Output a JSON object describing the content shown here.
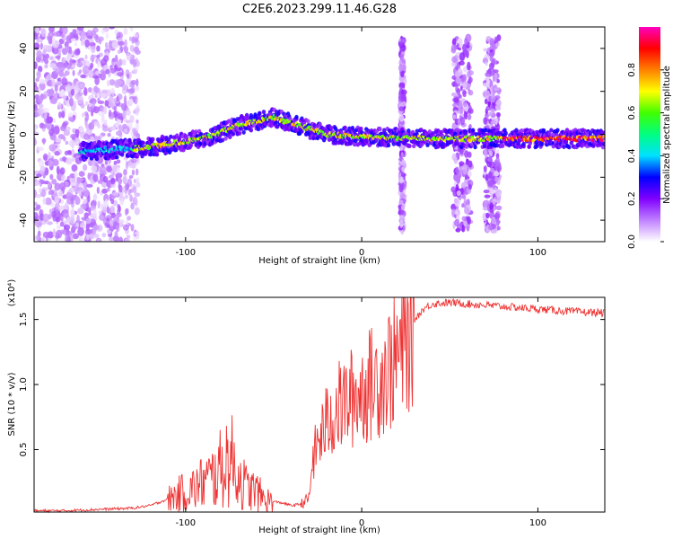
{
  "title": "C2E6.2023.299.11.46.G28",
  "chart_data": [
    {
      "type": "heatmap",
      "xlabel": "Height of straight line (km)",
      "ylabel": "Frequency (Hz)",
      "xlim": [
        -186,
        138
      ],
      "ylim": [
        -50,
        50
      ],
      "x_ticks": [
        -100,
        0,
        100
      ],
      "y_ticks": [
        -40,
        -20,
        0,
        20,
        40
      ],
      "colorbar": {
        "label": "Normalized spectral amplitude",
        "range": [
          0.0,
          1.0
        ],
        "ticks": [
          0.0,
          0.2,
          0.4,
          0.6,
          0.8
        ],
        "tick_labels": [
          "0.0",
          "0.2",
          "0.4",
          "0.6",
          "0.8"
        ],
        "colormap": [
          "#ffffff",
          "#c080ff",
          "#8000ff",
          "#0000ff",
          "#00e0ff",
          "#00ff80",
          "#40ff00",
          "#ffff00",
          "#ff8000",
          "#ff0000",
          "#ff00c0"
        ]
      },
      "ridge": {
        "description_points": [
          {
            "x": -160,
            "y": -8
          },
          {
            "x": -120,
            "y": -6
          },
          {
            "x": -90,
            "y": -2
          },
          {
            "x": -70,
            "y": 4
          },
          {
            "x": -50,
            "y": 8
          },
          {
            "x": -40,
            "y": 5
          },
          {
            "x": -20,
            "y": 0
          },
          {
            "x": 0,
            "y": -1
          },
          {
            "x": 40,
            "y": -2
          },
          {
            "x": 80,
            "y": -2
          },
          {
            "x": 138,
            "y": -2
          }
        ]
      }
    },
    {
      "type": "line",
      "xlabel": "Height of straight line (km)",
      "ylabel": "SNR (10 * v/v)",
      "y_multiplier": "(x10⁴)",
      "xlim": [
        -186,
        138
      ],
      "ylim": [
        0.02,
        1.67
      ],
      "x_ticks": [
        -100,
        0,
        100
      ],
      "y_ticks": [
        0.5,
        1.0,
        1.5
      ],
      "y_tick_labels": [
        "0.5",
        "1.0",
        "1.5"
      ],
      "series": [
        {
          "color": "#ee3333",
          "x": [
            -186,
            -170,
            -150,
            -130,
            -120,
            -110,
            -100,
            -95,
            -90,
            -85,
            -80,
            -75,
            -70,
            -65,
            -60,
            -55,
            -50,
            -45,
            -40,
            -35,
            -30,
            -28,
            -25,
            -20,
            -15,
            -10,
            -5,
            0,
            5,
            10,
            15,
            20,
            25,
            30,
            35,
            40,
            50,
            60,
            80,
            100,
            120,
            138
          ],
          "y": [
            0.03,
            0.03,
            0.04,
            0.05,
            0.07,
            0.12,
            0.18,
            0.2,
            0.25,
            0.28,
            0.35,
            0.45,
            0.3,
            0.2,
            0.18,
            0.12,
            0.1,
            0.09,
            0.07,
            0.08,
            0.12,
            0.4,
            0.55,
            0.7,
            0.8,
            0.85,
            0.9,
            0.95,
            1.0,
            1.05,
            1.12,
            1.2,
            1.35,
            1.5,
            1.58,
            1.62,
            1.63,
            1.62,
            1.6,
            1.58,
            1.56,
            1.55
          ]
        }
      ]
    }
  ]
}
